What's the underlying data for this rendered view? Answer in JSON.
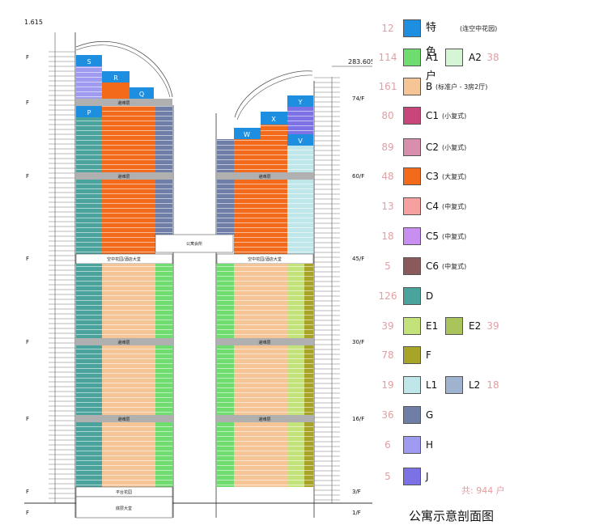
{
  "title": "公寓示意剖面图",
  "total": "共: 944 户",
  "elevations": {
    "left_top": "1.615",
    "right_top": "283.605"
  },
  "floors_left": [
    "F",
    "F",
    "F",
    "F",
    "F",
    "F",
    "F",
    "F"
  ],
  "floors_right": [
    "74/F",
    "60/F",
    "45/F",
    "30/F",
    "16/F",
    "3/F",
    "1/F"
  ],
  "building_labels": {
    "left_mech": "避难层",
    "right_mech": "避难层",
    "sky_bridge": "公寓会所",
    "sky_garden_left": "空中花园/酒店大堂",
    "sky_garden_right": "空中花园/酒店大堂",
    "lobby_left": "平台花园",
    "ground_left": "底层大堂"
  },
  "zones": {
    "S": "S",
    "R": "R",
    "Q": "Q",
    "P": "P",
    "W": "W",
    "X": "X",
    "Y": "Y",
    "V": "V"
  },
  "legend": [
    {
      "count": "12",
      "code": "特色户",
      "note": "(连空中花园)",
      "color": "#1e8fe0"
    },
    {
      "count": "114",
      "code": "A1",
      "color": "#6fdc6f",
      "code2": "A2",
      "count2": "38",
      "color2": "#d5f5d5"
    },
    {
      "count": "161",
      "code": "B",
      "note": "(标准户 - 3房2厅)",
      "color": "#f6c596"
    },
    {
      "count": "80",
      "code": "C1",
      "note": "(小复式)",
      "color": "#c8467a"
    },
    {
      "count": "89",
      "code": "C2",
      "note": "(小复式)",
      "color": "#d88fae"
    },
    {
      "count": "48",
      "code": "C3",
      "note": "(大复式)",
      "color": "#f26a1a"
    },
    {
      "count": "13",
      "code": "C4",
      "note": "(中复式)",
      "color": "#f7a0a0"
    },
    {
      "count": "18",
      "code": "C5",
      "note": "(中复式)",
      "color": "#c98ff0"
    },
    {
      "count": "5",
      "code": "C6",
      "note": "(中复式)",
      "color": "#8a5a5a"
    },
    {
      "count": "126",
      "code": "D",
      "color": "#4aa39c"
    },
    {
      "count": "39",
      "code": "E1",
      "color": "#c4e27a",
      "code2": "E2",
      "count2": "39",
      "color2": "#a8c45a"
    },
    {
      "count": "78",
      "code": "F",
      "color": "#a8a428"
    },
    {
      "count": "19",
      "code": "L1",
      "color": "#bfe6e9",
      "code2": "L2",
      "count2": "18",
      "color2": "#9fb3cf"
    },
    {
      "count": "36",
      "code": "G",
      "color": "#6e7ea6"
    },
    {
      "count": "6",
      "code": "H",
      "color": "#9f9bf0"
    },
    {
      "count": "5",
      "code": "J",
      "color": "#7c72e6"
    }
  ]
}
